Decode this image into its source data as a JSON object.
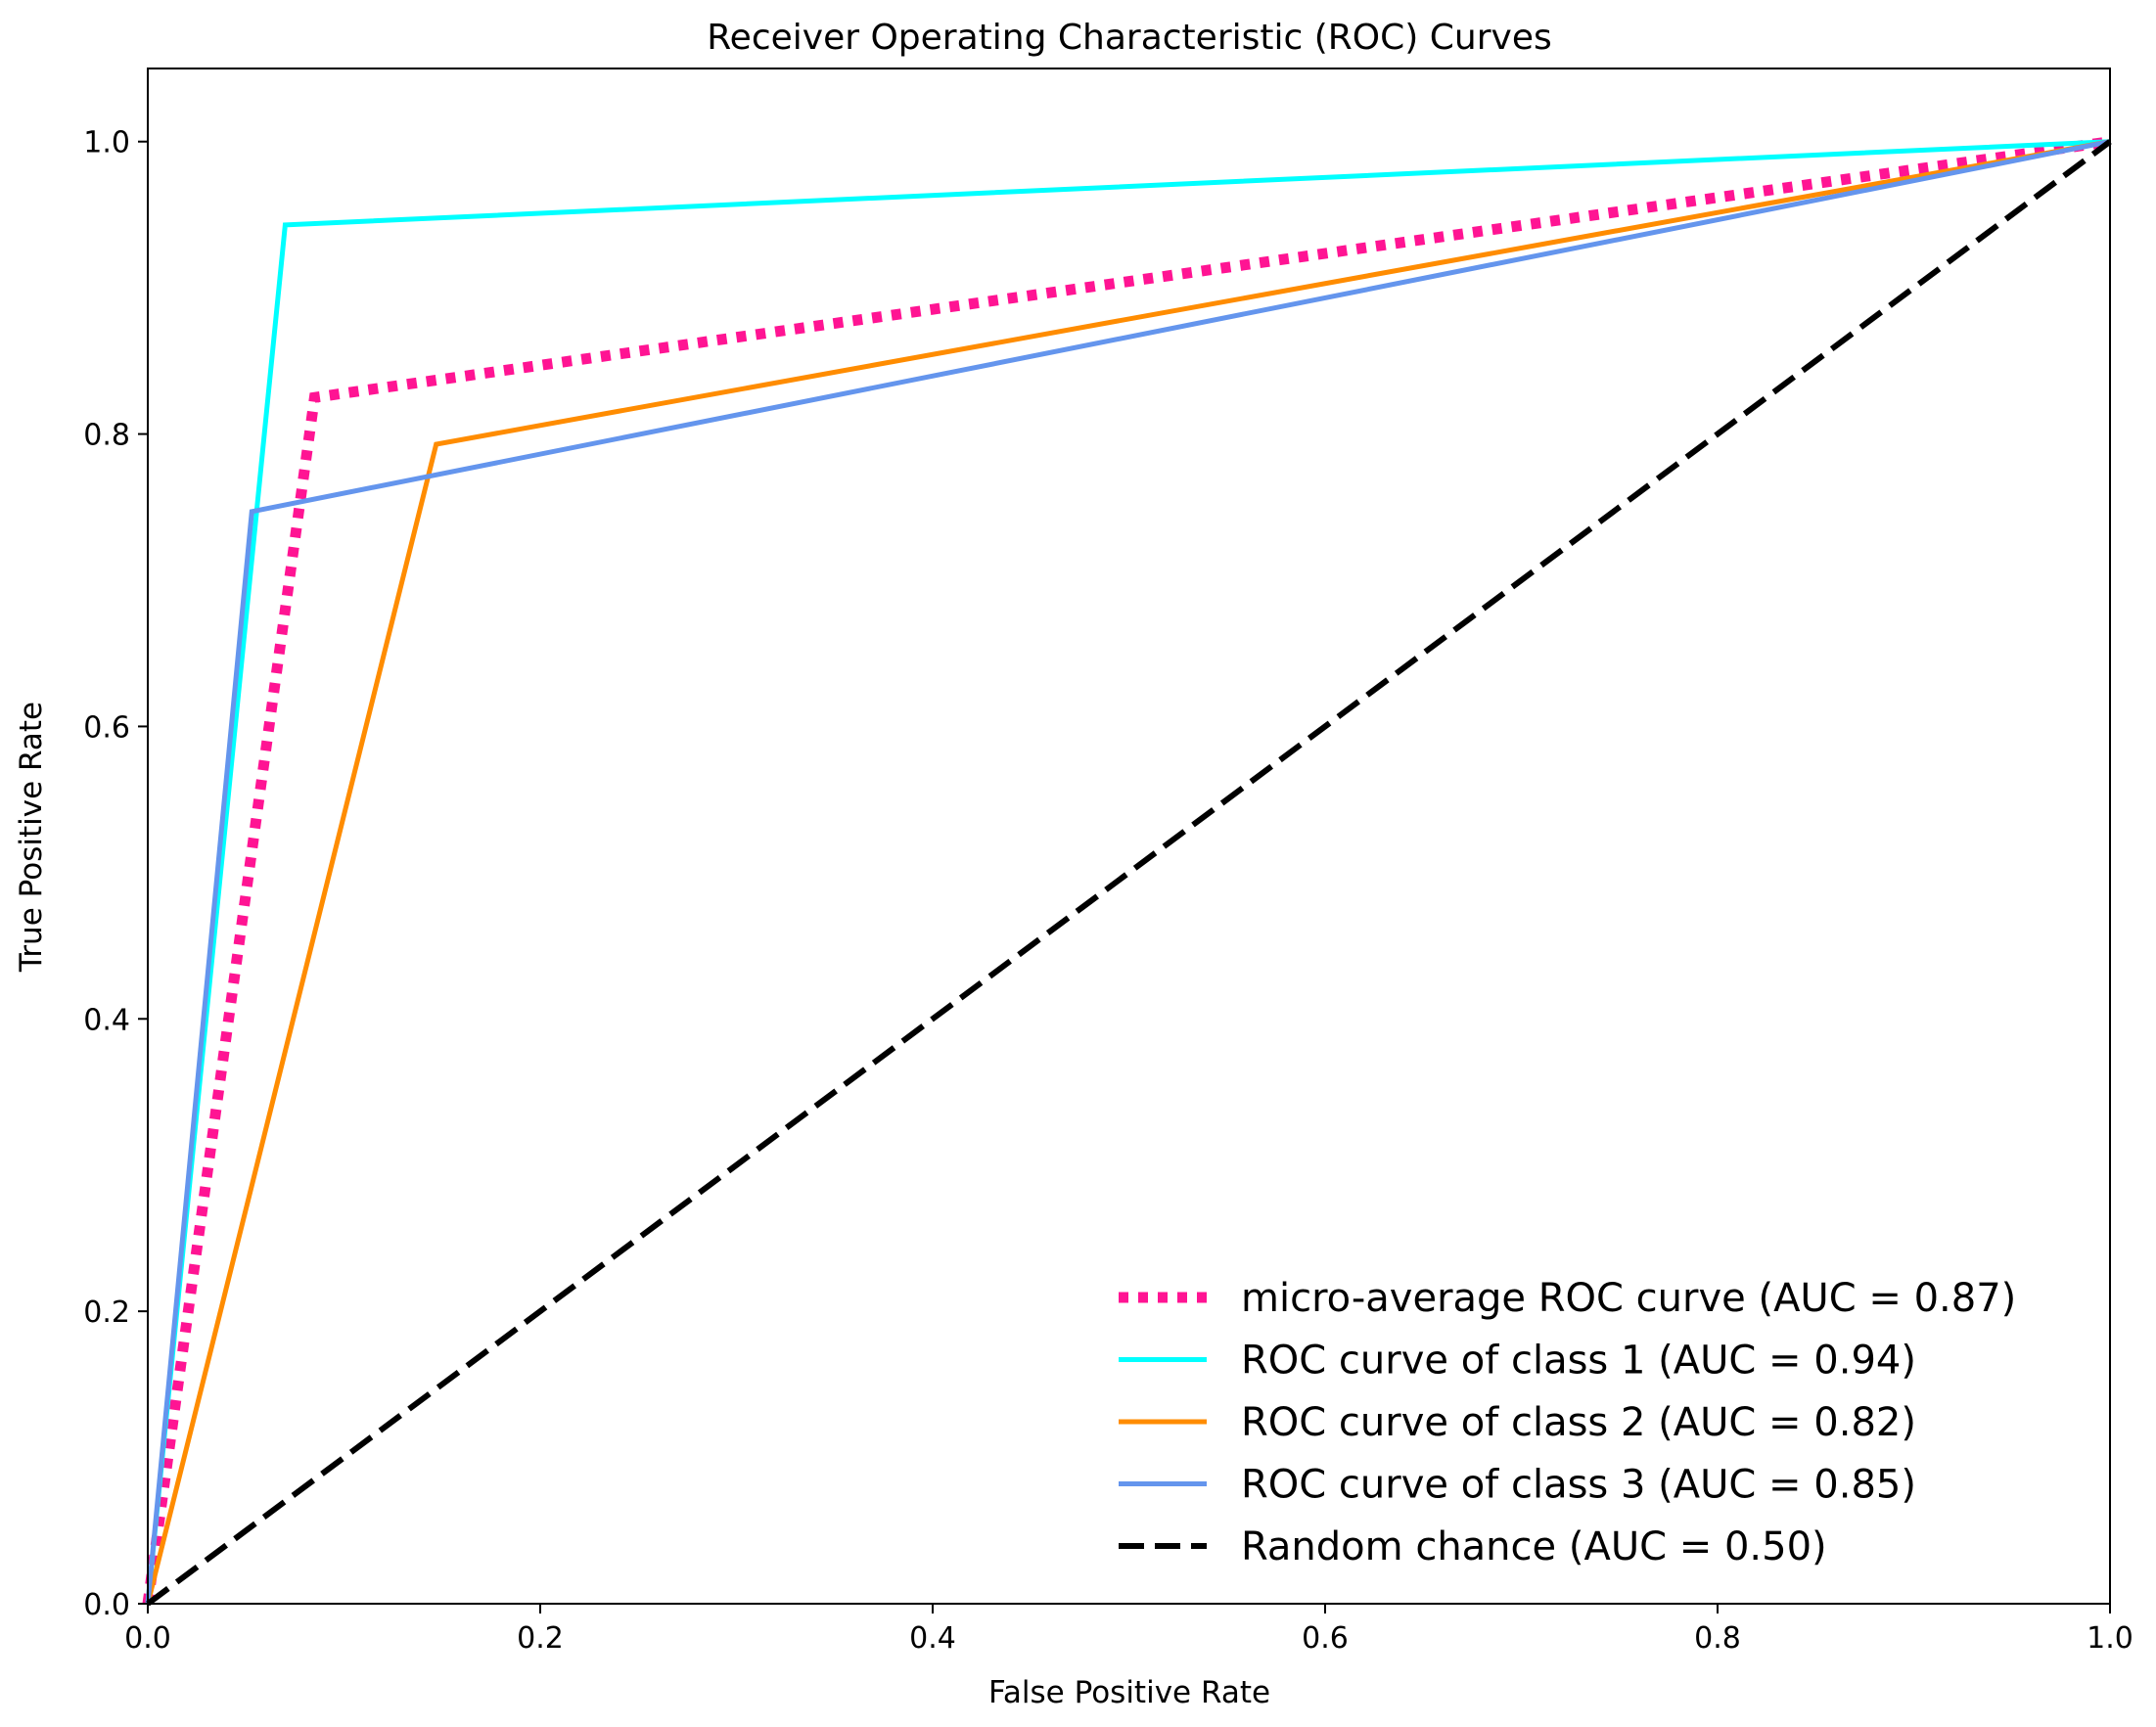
{
  "chart_data": {
    "type": "line",
    "title": "Receiver Operating Characteristic (ROC) Curves",
    "xlabel": "False Positive Rate",
    "ylabel": "True Positive Rate",
    "xlim": [
      0.0,
      1.0
    ],
    "ylim": [
      0.0,
      1.05
    ],
    "xticks": [
      "0.0",
      "0.2",
      "0.4",
      "0.6",
      "0.8",
      "1.0"
    ],
    "yticks": [
      "0.0",
      "0.2",
      "0.4",
      "0.6",
      "0.8",
      "1.0"
    ],
    "grid": false,
    "legend_position": "bottom-right",
    "series": [
      {
        "name": "micro-average ROC curve (AUC = 0.87)",
        "color": "#ff1493",
        "style": "dotted",
        "x": [
          0.0,
          0.085,
          1.0
        ],
        "y": [
          0.0,
          0.825,
          1.0
        ]
      },
      {
        "name": "ROC curve of class 1 (AUC = 0.94)",
        "color": "#00ffff",
        "style": "solid",
        "x": [
          0.0,
          0.07,
          1.0
        ],
        "y": [
          0.0,
          0.943,
          1.0
        ]
      },
      {
        "name": "ROC curve of class 2 (AUC = 0.82)",
        "color": "#ff8c00",
        "style": "solid",
        "x": [
          0.0,
          0.147,
          1.0
        ],
        "y": [
          0.0,
          0.793,
          1.0
        ]
      },
      {
        "name": "ROC curve of class 3 (AUC = 0.85)",
        "color": "#6495ed",
        "style": "solid",
        "x": [
          0.0,
          0.053,
          1.0
        ],
        "y": [
          0.0,
          0.747,
          1.0
        ]
      },
      {
        "name": "Random chance (AUC = 0.50)",
        "color": "#000000",
        "style": "dashed",
        "x": [
          0.0,
          1.0
        ],
        "y": [
          0.0,
          1.0
        ]
      }
    ]
  }
}
